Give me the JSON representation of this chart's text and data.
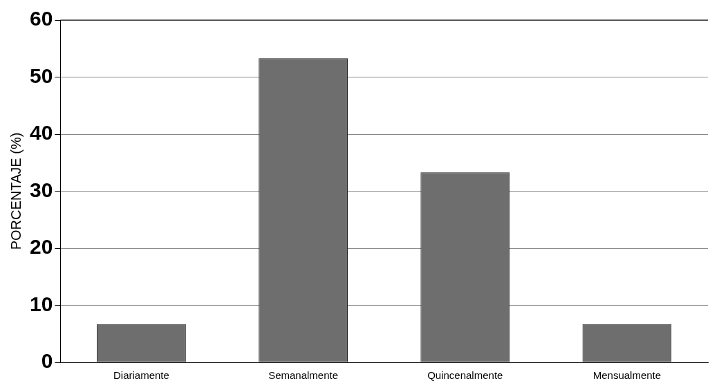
{
  "chart_data": {
    "type": "bar",
    "ylabel": "PORCENTAJE (%)",
    "categories": [
      "Diariamente",
      "Semanalmente",
      "Quincenalmente",
      "Mensualmente"
    ],
    "values": [
      6.7,
      53.3,
      33.3,
      6.7
    ],
    "color": "#6e6e6e",
    "ylim": [
      0,
      60
    ],
    "yticks": [
      0,
      10,
      20,
      30,
      40,
      50,
      60
    ],
    "grid": "y",
    "legend": false
  }
}
